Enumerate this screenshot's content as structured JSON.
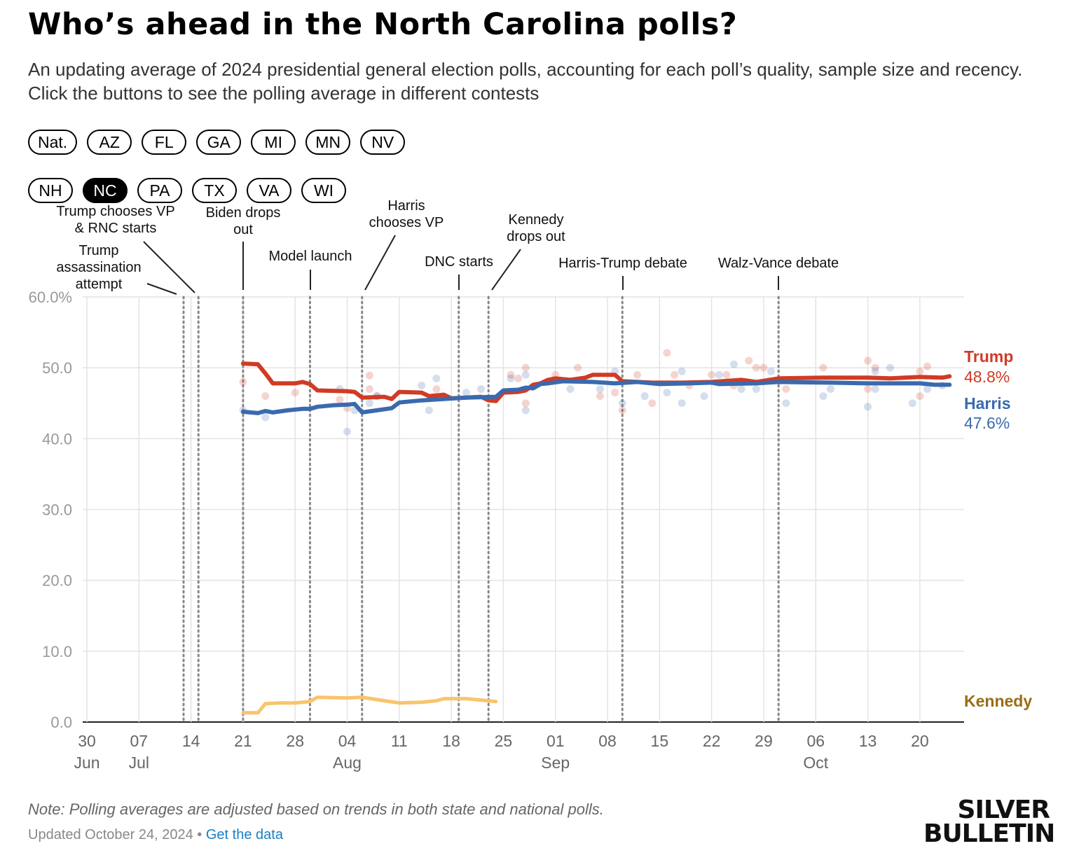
{
  "title": "Who’s ahead in the North Carolina polls?",
  "subtitle": "An updating average of 2024 presidential general election polls, accounting for each poll’s quality, sample size and recency. Click the buttons to see the polling average in different contests",
  "buttons_row1": [
    "Nat.",
    "AZ",
    "FL",
    "GA",
    "MI",
    "MN",
    "NV"
  ],
  "buttons_row2": [
    "NH",
    "NC",
    "PA",
    "TX",
    "VA",
    "WI"
  ],
  "active_button": "NC",
  "note": "Note: Polling averages are adjusted based on trends in both state and national polls.",
  "updated": "Updated October 24, 2024",
  "separator": "•",
  "get_data_link": "Get the data",
  "logo": {
    "line1": "SILVER",
    "line2": "BULLETIN"
  },
  "chart_data": {
    "type": "line",
    "title": "Who’s ahead in the North Carolina polls?",
    "x_start": "2024-06-30",
    "x_end": "2024-10-24",
    "ylim": [
      0,
      60
    ],
    "yticks": [
      "0.0",
      "10.0",
      "20.0",
      "30.0",
      "40.0",
      "50.0",
      "60.0%"
    ],
    "ytick_values": [
      0,
      10,
      20,
      30,
      40,
      50,
      60
    ],
    "xticks": [
      {
        "date": "2024-06-30",
        "label": "30",
        "month": "Jun"
      },
      {
        "date": "2024-07-07",
        "label": "07",
        "month": "Jul"
      },
      {
        "date": "2024-07-14",
        "label": "14",
        "month": ""
      },
      {
        "date": "2024-07-21",
        "label": "21",
        "month": ""
      },
      {
        "date": "2024-07-28",
        "label": "28",
        "month": ""
      },
      {
        "date": "2024-08-04",
        "label": "04",
        "month": "Aug"
      },
      {
        "date": "2024-08-11",
        "label": "11",
        "month": ""
      },
      {
        "date": "2024-08-18",
        "label": "18",
        "month": ""
      },
      {
        "date": "2024-08-25",
        "label": "25",
        "month": ""
      },
      {
        "date": "2024-09-01",
        "label": "01",
        "month": "Sep"
      },
      {
        "date": "2024-09-08",
        "label": "08",
        "month": ""
      },
      {
        "date": "2024-09-15",
        "label": "15",
        "month": ""
      },
      {
        "date": "2024-09-22",
        "label": "22",
        "month": ""
      },
      {
        "date": "2024-09-29",
        "label": "29",
        "month": ""
      },
      {
        "date": "2024-10-06",
        "label": "06",
        "month": "Oct"
      },
      {
        "date": "2024-10-13",
        "label": "13",
        "month": ""
      },
      {
        "date": "2024-10-20",
        "label": "20",
        "month": ""
      }
    ],
    "grid": true,
    "legend": "right-end labels",
    "series": [
      {
        "name": "Trump",
        "final_label": "48.8%",
        "color": "#d03b25",
        "points": [
          [
            "07-21",
            50.6
          ],
          [
            "07-23",
            50.5
          ],
          [
            "07-24",
            49.2
          ],
          [
            "07-25",
            47.8
          ],
          [
            "07-28",
            47.8
          ],
          [
            "07-29",
            48.0
          ],
          [
            "07-30",
            47.7
          ],
          [
            "07-31",
            46.8
          ],
          [
            "08-04",
            46.7
          ],
          [
            "08-05",
            46.6
          ],
          [
            "08-06",
            45.8
          ],
          [
            "08-09",
            45.9
          ],
          [
            "08-10",
            45.6
          ],
          [
            "08-11",
            46.6
          ],
          [
            "08-14",
            46.5
          ],
          [
            "08-15",
            46.0
          ],
          [
            "08-17",
            46.2
          ],
          [
            "08-18",
            45.7
          ],
          [
            "08-22",
            45.9
          ],
          [
            "08-23",
            45.4
          ],
          [
            "08-24",
            45.3
          ],
          [
            "08-25",
            46.5
          ],
          [
            "08-27",
            46.6
          ],
          [
            "08-28",
            46.8
          ],
          [
            "08-29",
            47.6
          ],
          [
            "08-30",
            47.8
          ],
          [
            "08-31",
            48.3
          ],
          [
            "09-01",
            48.5
          ],
          [
            "09-03",
            48.3
          ],
          [
            "09-05",
            48.6
          ],
          [
            "09-06",
            49.0
          ],
          [
            "09-09",
            49.0
          ],
          [
            "09-10",
            48.1
          ],
          [
            "09-14",
            47.9
          ],
          [
            "09-18",
            47.9
          ],
          [
            "09-22",
            48.0
          ],
          [
            "09-26",
            48.3
          ],
          [
            "09-28",
            48.0
          ],
          [
            "10-01",
            48.5
          ],
          [
            "10-07",
            48.6
          ],
          [
            "10-13",
            48.6
          ],
          [
            "10-16",
            48.5
          ],
          [
            "10-20",
            48.7
          ],
          [
            "10-23",
            48.6
          ],
          [
            "10-24",
            48.8
          ]
        ],
        "polls": [
          [
            "07-21",
            48.0
          ],
          [
            "07-24",
            46.0
          ],
          [
            "07-28",
            46.5
          ],
          [
            "08-03",
            45.5
          ],
          [
            "08-04",
            44.3
          ],
          [
            "08-07",
            48.9
          ],
          [
            "08-07",
            47.0
          ],
          [
            "08-08",
            46.0
          ],
          [
            "08-16",
            47.0
          ],
          [
            "08-26",
            49.0
          ],
          [
            "08-27",
            48.5
          ],
          [
            "08-28",
            50.0
          ],
          [
            "08-28",
            45.0
          ],
          [
            "09-01",
            49.0
          ],
          [
            "09-04",
            50.0
          ],
          [
            "09-07",
            46.0
          ],
          [
            "09-09",
            46.5
          ],
          [
            "09-10",
            44.0
          ],
          [
            "09-12",
            49.0
          ],
          [
            "09-14",
            45.0
          ],
          [
            "09-16",
            52.1
          ],
          [
            "09-17",
            49.0
          ],
          [
            "09-19",
            47.5
          ],
          [
            "09-22",
            49.0
          ],
          [
            "09-24",
            49.0
          ],
          [
            "09-25",
            47.5
          ],
          [
            "09-27",
            51.0
          ],
          [
            "09-28",
            50.0
          ],
          [
            "09-29",
            50.0
          ],
          [
            "10-02",
            47.0
          ],
          [
            "10-07",
            50.0
          ],
          [
            "10-13",
            51.0
          ],
          [
            "10-13",
            47.0
          ],
          [
            "10-14",
            50.0
          ],
          [
            "10-20",
            49.5
          ],
          [
            "10-21",
            50.2
          ],
          [
            "10-20",
            46.0
          ]
        ]
      },
      {
        "name": "Harris",
        "final_label": "47.6%",
        "color": "#3a6aad",
        "points": [
          [
            "07-21",
            43.8
          ],
          [
            "07-23",
            43.6
          ],
          [
            "07-24",
            43.9
          ],
          [
            "07-25",
            43.7
          ],
          [
            "07-27",
            44.0
          ],
          [
            "07-29",
            44.2
          ],
          [
            "07-30",
            44.2
          ],
          [
            "07-31",
            44.5
          ],
          [
            "08-02",
            44.7
          ],
          [
            "08-04",
            44.8
          ],
          [
            "08-05",
            44.9
          ],
          [
            "08-06",
            43.7
          ],
          [
            "08-08",
            44.0
          ],
          [
            "08-10",
            44.3
          ],
          [
            "08-11",
            45.1
          ],
          [
            "08-14",
            45.4
          ],
          [
            "08-17",
            45.6
          ],
          [
            "08-20",
            45.8
          ],
          [
            "08-24",
            45.9
          ],
          [
            "08-25",
            46.8
          ],
          [
            "08-27",
            46.9
          ],
          [
            "08-28",
            47.2
          ],
          [
            "08-29",
            47.1
          ],
          [
            "08-30",
            47.7
          ],
          [
            "08-31",
            47.8
          ],
          [
            "09-02",
            48.1
          ],
          [
            "09-06",
            48.0
          ],
          [
            "09-09",
            47.8
          ],
          [
            "09-12",
            48.0
          ],
          [
            "09-15",
            47.7
          ],
          [
            "09-19",
            47.8
          ],
          [
            "09-22",
            47.9
          ],
          [
            "09-23",
            47.7
          ],
          [
            "09-28",
            47.8
          ],
          [
            "10-01",
            48.0
          ],
          [
            "10-08",
            47.9
          ],
          [
            "10-13",
            47.8
          ],
          [
            "10-20",
            47.8
          ],
          [
            "10-22",
            47.6
          ],
          [
            "10-24",
            47.6
          ]
        ],
        "polls": [
          [
            "07-21",
            44.0
          ],
          [
            "07-24",
            43.0
          ],
          [
            "08-03",
            47.0
          ],
          [
            "08-04",
            41.0
          ],
          [
            "08-05",
            44.0
          ],
          [
            "08-07",
            45.0
          ],
          [
            "08-08",
            46.0
          ],
          [
            "08-14",
            47.5
          ],
          [
            "08-15",
            44.0
          ],
          [
            "08-16",
            48.5
          ],
          [
            "08-20",
            46.5
          ],
          [
            "08-22",
            47.0
          ],
          [
            "08-26",
            48.5
          ],
          [
            "08-28",
            49.0
          ],
          [
            "08-28",
            44.0
          ],
          [
            "09-03",
            47.0
          ],
          [
            "09-07",
            47.0
          ],
          [
            "09-09",
            49.5
          ],
          [
            "09-10",
            45.0
          ],
          [
            "09-13",
            46.0
          ],
          [
            "09-16",
            46.5
          ],
          [
            "09-18",
            49.5
          ],
          [
            "09-18",
            45.0
          ],
          [
            "09-21",
            46.0
          ],
          [
            "09-23",
            49.0
          ],
          [
            "09-25",
            50.5
          ],
          [
            "09-26",
            47.0
          ],
          [
            "09-28",
            47.0
          ],
          [
            "09-30",
            49.5
          ],
          [
            "10-02",
            45.0
          ],
          [
            "10-07",
            46.0
          ],
          [
            "10-08",
            47.0
          ],
          [
            "10-13",
            44.5
          ],
          [
            "10-14",
            49.5
          ],
          [
            "10-14",
            47.0
          ],
          [
            "10-16",
            50.0
          ],
          [
            "10-19",
            45.0
          ],
          [
            "10-21",
            47.0
          ],
          [
            "10-23",
            47.5
          ]
        ]
      },
      {
        "name": "Kennedy",
        "final_label": "",
        "color": "#f9c46b",
        "label_color": "#9a6c12",
        "points": [
          [
            "07-21",
            1.3
          ],
          [
            "07-23",
            1.3
          ],
          [
            "07-24",
            2.6
          ],
          [
            "07-26",
            2.7
          ],
          [
            "07-28",
            2.7
          ],
          [
            "07-30",
            2.9
          ],
          [
            "07-31",
            3.5
          ],
          [
            "08-04",
            3.4
          ],
          [
            "08-06",
            3.5
          ],
          [
            "08-09",
            3.0
          ],
          [
            "08-11",
            2.7
          ],
          [
            "08-14",
            2.8
          ],
          [
            "08-16",
            3.0
          ],
          [
            "08-17",
            3.3
          ],
          [
            "08-20",
            3.3
          ],
          [
            "08-24",
            2.9
          ]
        ],
        "polls": []
      }
    ],
    "events": [
      {
        "date": "07-13",
        "label": "Trump assassination attempt",
        "lines": [
          "Trump",
          "assassination",
          "attempt"
        ]
      },
      {
        "date": "07-15",
        "label": "Trump chooses VP & RNC starts",
        "lines": [
          "Trump chooses VP",
          "& RNC starts"
        ]
      },
      {
        "date": "07-21",
        "label": "Biden drops out",
        "lines": [
          "Biden drops",
          "out"
        ]
      },
      {
        "date": "07-30",
        "label": "Model launch",
        "lines": [
          "Model launch"
        ]
      },
      {
        "date": "08-06",
        "label": "Harris chooses VP",
        "lines": [
          "Harris",
          "chooses VP"
        ]
      },
      {
        "date": "08-19",
        "label": "DNC starts",
        "lines": [
          "DNC starts"
        ]
      },
      {
        "date": "08-23",
        "label": "Kennedy drops out",
        "lines": [
          "Kennedy",
          "drops out"
        ]
      },
      {
        "date": "09-10",
        "label": "Harris-Trump debate",
        "lines": [
          "Harris-Trump debate"
        ]
      },
      {
        "date": "10-01",
        "label": "Walz-Vance debate",
        "lines": [
          "Walz-Vance debate"
        ]
      }
    ]
  }
}
